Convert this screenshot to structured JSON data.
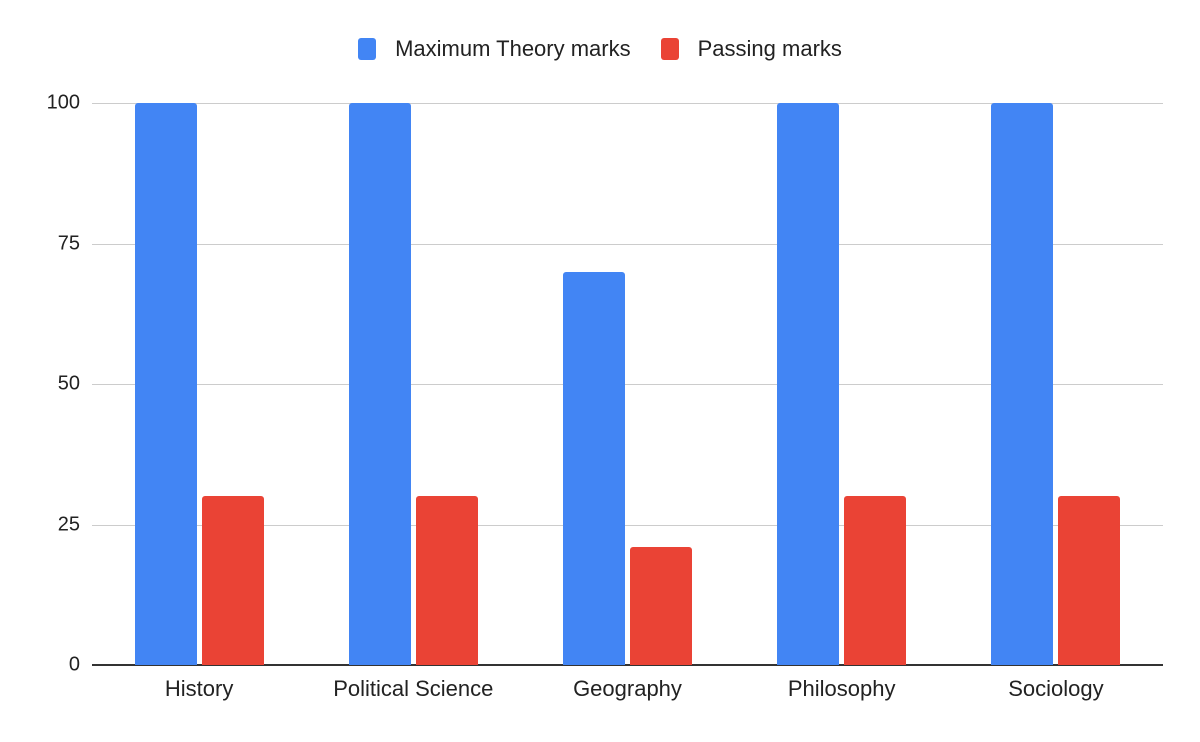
{
  "chart_data": {
    "type": "bar",
    "title": "",
    "xlabel": "",
    "ylabel": "",
    "categories": [
      "History",
      "Political Science",
      "Geography",
      "Philosophy",
      "Sociology"
    ],
    "series": [
      {
        "name": "Maximum Theory marks",
        "color": "#4285f4",
        "values": [
          100,
          100,
          70,
          100,
          100
        ]
      },
      {
        "name": "Passing marks",
        "color": "#ea4335",
        "values": [
          30,
          30,
          21,
          30,
          30
        ]
      }
    ],
    "ylim": [
      0,
      100
    ],
    "yticks": [
      "0",
      "25",
      "50",
      "75",
      "100"
    ],
    "grid": true,
    "legend_position": "top"
  }
}
